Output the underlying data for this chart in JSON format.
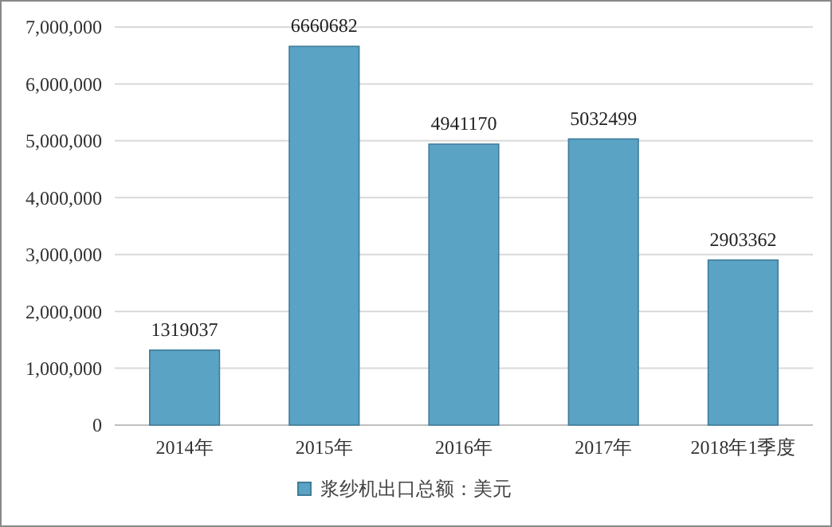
{
  "chart_data": {
    "type": "bar",
    "categories": [
      "2014年",
      "2015年",
      "2016年",
      "2017年",
      "2018年1季度"
    ],
    "series": [
      {
        "name": "浆纱机出口总额：美元",
        "color": "#5ba3c4",
        "values": [
          1319037,
          6660682,
          4941170,
          5032499,
          2903362
        ]
      }
    ],
    "ylim": [
      0,
      7000000
    ],
    "yticks": [
      0,
      {
        "value": 1000000,
        "label": "1,000,000"
      },
      {
        "value": 2000000,
        "label": "2,000,000"
      },
      {
        "value": 3000000,
        "label": "3,000,000"
      },
      {
        "value": 4000000,
        "label": "4,000,000"
      },
      {
        "value": 5000000,
        "label": "5,000,000"
      },
      {
        "value": 6000000,
        "label": "6,000,000"
      },
      {
        "value": 7000000,
        "label": "7,000,000"
      }
    ],
    "grid": "y",
    "legend": "bottom",
    "data_labels": true
  }
}
